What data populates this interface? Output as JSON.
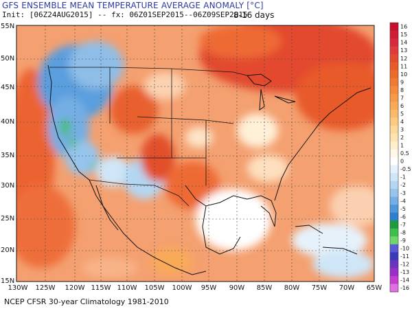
{
  "header": {
    "title": "GFS ENSEMBLE MEAN TEMPERATURE AVERAGE ANOMALY [°C]",
    "init_line": "Init: [06Z24AUG2015] -- fx: 06Z01SEP2015--06Z09SEP2015",
    "period": "8-16 days"
  },
  "footer": {
    "text": "NCEP CFSR 30-year Climatology 1981-2010"
  },
  "map": {
    "lat_labels": [
      "55N",
      "50N",
      "45N",
      "40N",
      "35N",
      "30N",
      "25N",
      "20N",
      "15N"
    ],
    "lon_labels": [
      "130W",
      "125W",
      "120W",
      "115W",
      "110W",
      "105W",
      "100W",
      "95W",
      "90W",
      "85W",
      "80W",
      "75W",
      "70W",
      "65W"
    ]
  },
  "colorbar": {
    "labels": [
      "16",
      "15",
      "14",
      "13",
      "12",
      "11",
      "10",
      "9",
      "8",
      "7",
      "6",
      "5",
      "4",
      "3",
      "2",
      "1",
      "0.5",
      "0",
      "-0.5",
      "-1",
      "-2",
      "-3",
      "-4",
      "-5",
      "-6",
      "-7",
      "-8",
      "-9",
      "-10",
      "-11",
      "-12",
      "-13",
      "-14",
      "-16"
    ],
    "colors": [
      "#c8102e",
      "#d01c34",
      "#d8283c",
      "#e03a3a",
      "#e44a2e",
      "#e85a28",
      "#ec6a2a",
      "#f07a30",
      "#f48a3a",
      "#f79a48",
      "#f9aa58",
      "#fbba6a",
      "#fccb80",
      "#fdd898",
      "#fee4b0",
      "#fff0cc",
      "#fff8e6",
      "#ffffff",
      "#e6f2fb",
      "#cfe6f8",
      "#b4d6f2",
      "#96c4ec",
      "#74aee4",
      "#4f96da",
      "#2e7fd0",
      "#1e9b3c",
      "#3cbf4c",
      "#6fd66a",
      "#5a5ad8",
      "#3a3ab8",
      "#6a34c0",
      "#9a2ec8",
      "#c43cd0",
      "#e070e0"
    ]
  }
}
